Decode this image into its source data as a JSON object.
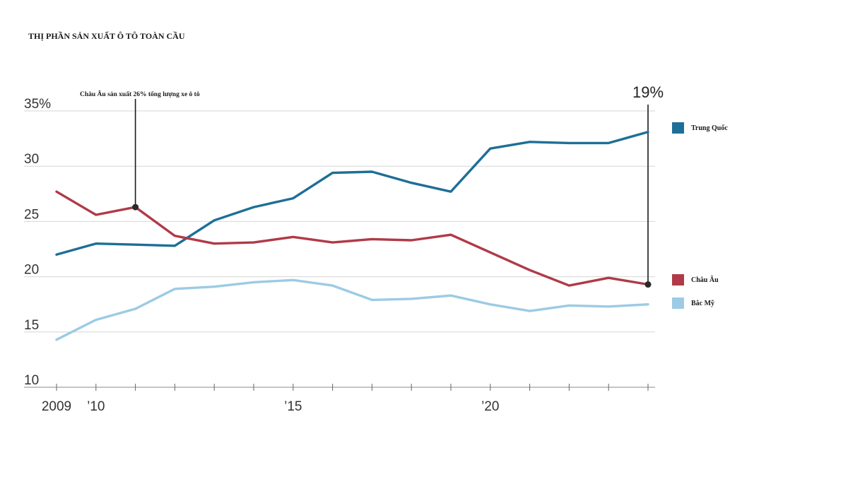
{
  "chart_data": {
    "type": "line",
    "title": "THỊ PHẦN SẢN XUẤT Ô TÔ TOÀN CẦU",
    "x": [
      2009,
      2010,
      2011,
      2012,
      2013,
      2014,
      2015,
      2016,
      2017,
      2018,
      2019,
      2020,
      2021,
      2022,
      2023,
      2024
    ],
    "x_tick_labels": [
      {
        "x": 2009,
        "label": "2009"
      },
      {
        "x": 2010,
        "label": "’10"
      },
      {
        "x": 2015,
        "label": "’15"
      },
      {
        "x": 2020,
        "label": "’20"
      }
    ],
    "ylim": [
      10,
      35
    ],
    "y_ticks": [
      {
        "value": 35,
        "label": "35%"
      },
      {
        "value": 30,
        "label": "30"
      },
      {
        "value": 25,
        "label": "25"
      },
      {
        "value": 20,
        "label": "20"
      },
      {
        "value": 15,
        "label": "15"
      },
      {
        "value": 10,
        "label": "10"
      }
    ],
    "grid": true,
    "legend_position": "right",
    "series": [
      {
        "name": "Trung Quốc",
        "color": "#1d6f97",
        "values": [
          22.0,
          23.0,
          22.9,
          22.8,
          25.1,
          26.3,
          27.1,
          29.4,
          29.5,
          28.5,
          27.7,
          31.6,
          32.2,
          32.1,
          32.1,
          33.1
        ]
      },
      {
        "name": "Châu Âu",
        "color": "#b03a48",
        "values": [
          27.7,
          25.6,
          26.3,
          23.7,
          23.0,
          23.1,
          23.6,
          23.1,
          23.4,
          23.3,
          23.8,
          22.2,
          20.6,
          19.2,
          19.9,
          19.3
        ]
      },
      {
        "name": "Bắc Mỹ",
        "color": "#9ccbe4",
        "values": [
          14.3,
          16.1,
          17.1,
          18.9,
          19.1,
          19.5,
          19.7,
          19.2,
          17.9,
          18.0,
          18.3,
          17.5,
          16.9,
          17.4,
          17.3,
          17.5
        ]
      }
    ],
    "annotations": [
      {
        "x": 2011,
        "y": 26.3,
        "text": "Châu Âu sản xuất 26% tổng lượng xe ô tô"
      },
      {
        "x": 2024,
        "y": 19.3,
        "text": "19%"
      }
    ]
  }
}
